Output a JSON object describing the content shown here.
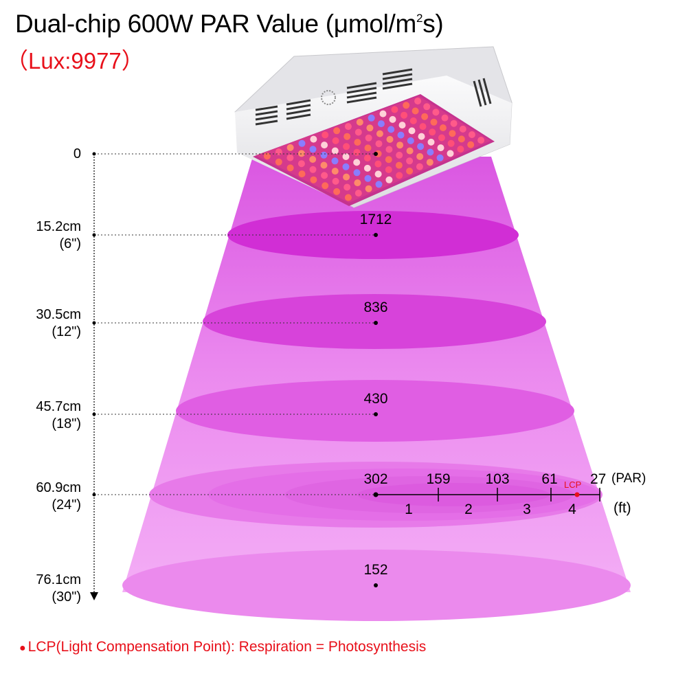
{
  "title": {
    "main": "Dual-chip 600W PAR Value (μmol/m",
    "superscript": "2",
    "suffix": "s)",
    "lux": "（Lux:9977）"
  },
  "depth_levels": [
    {
      "cm": "0",
      "inch": ""
    },
    {
      "cm": "15.2cm",
      "inch": "(6\")"
    },
    {
      "cm": "30.5cm",
      "inch": "(12\")"
    },
    {
      "cm": "45.7cm",
      "inch": "(18\")"
    },
    {
      "cm": "60.9cm",
      "inch": "(24\")"
    },
    {
      "cm": "76.1cm",
      "inch": "(30\")"
    }
  ],
  "center_values": [
    "1712",
    "836",
    "430",
    "302",
    "152"
  ],
  "horizontal_scale": {
    "par_values": [
      "159",
      "103",
      "61",
      "27"
    ],
    "par_unit": "(PAR)",
    "ft_ticks": [
      "1",
      "2",
      "3",
      "4"
    ],
    "ft_unit": "(ft)",
    "lcp_marker": "LCP"
  },
  "legend": {
    "bullet": "●",
    "text": "LCP(Light Compensation Point): Respiration = Photosynthesis"
  },
  "colors": {
    "beam": "#ee8bf0",
    "disc": "#d536d8",
    "accent_red": "#e8101a",
    "lamp_body": "#f1f1f3"
  }
}
